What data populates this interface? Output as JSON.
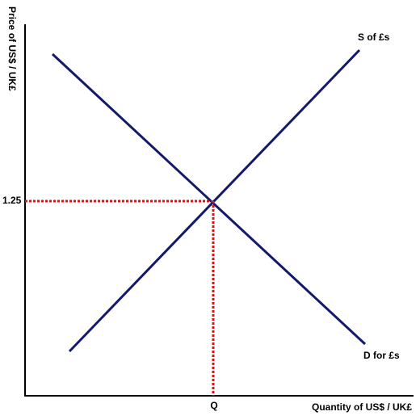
{
  "axes": {
    "y_label": "Price of US$ / UK£",
    "x_label": "Quantity of US$ / UK£"
  },
  "curves": [
    {
      "label": "S of £s"
    },
    {
      "label": "D for £s"
    }
  ],
  "equilibrium": {
    "price": 1.25,
    "quantity_label": "Q"
  }
}
